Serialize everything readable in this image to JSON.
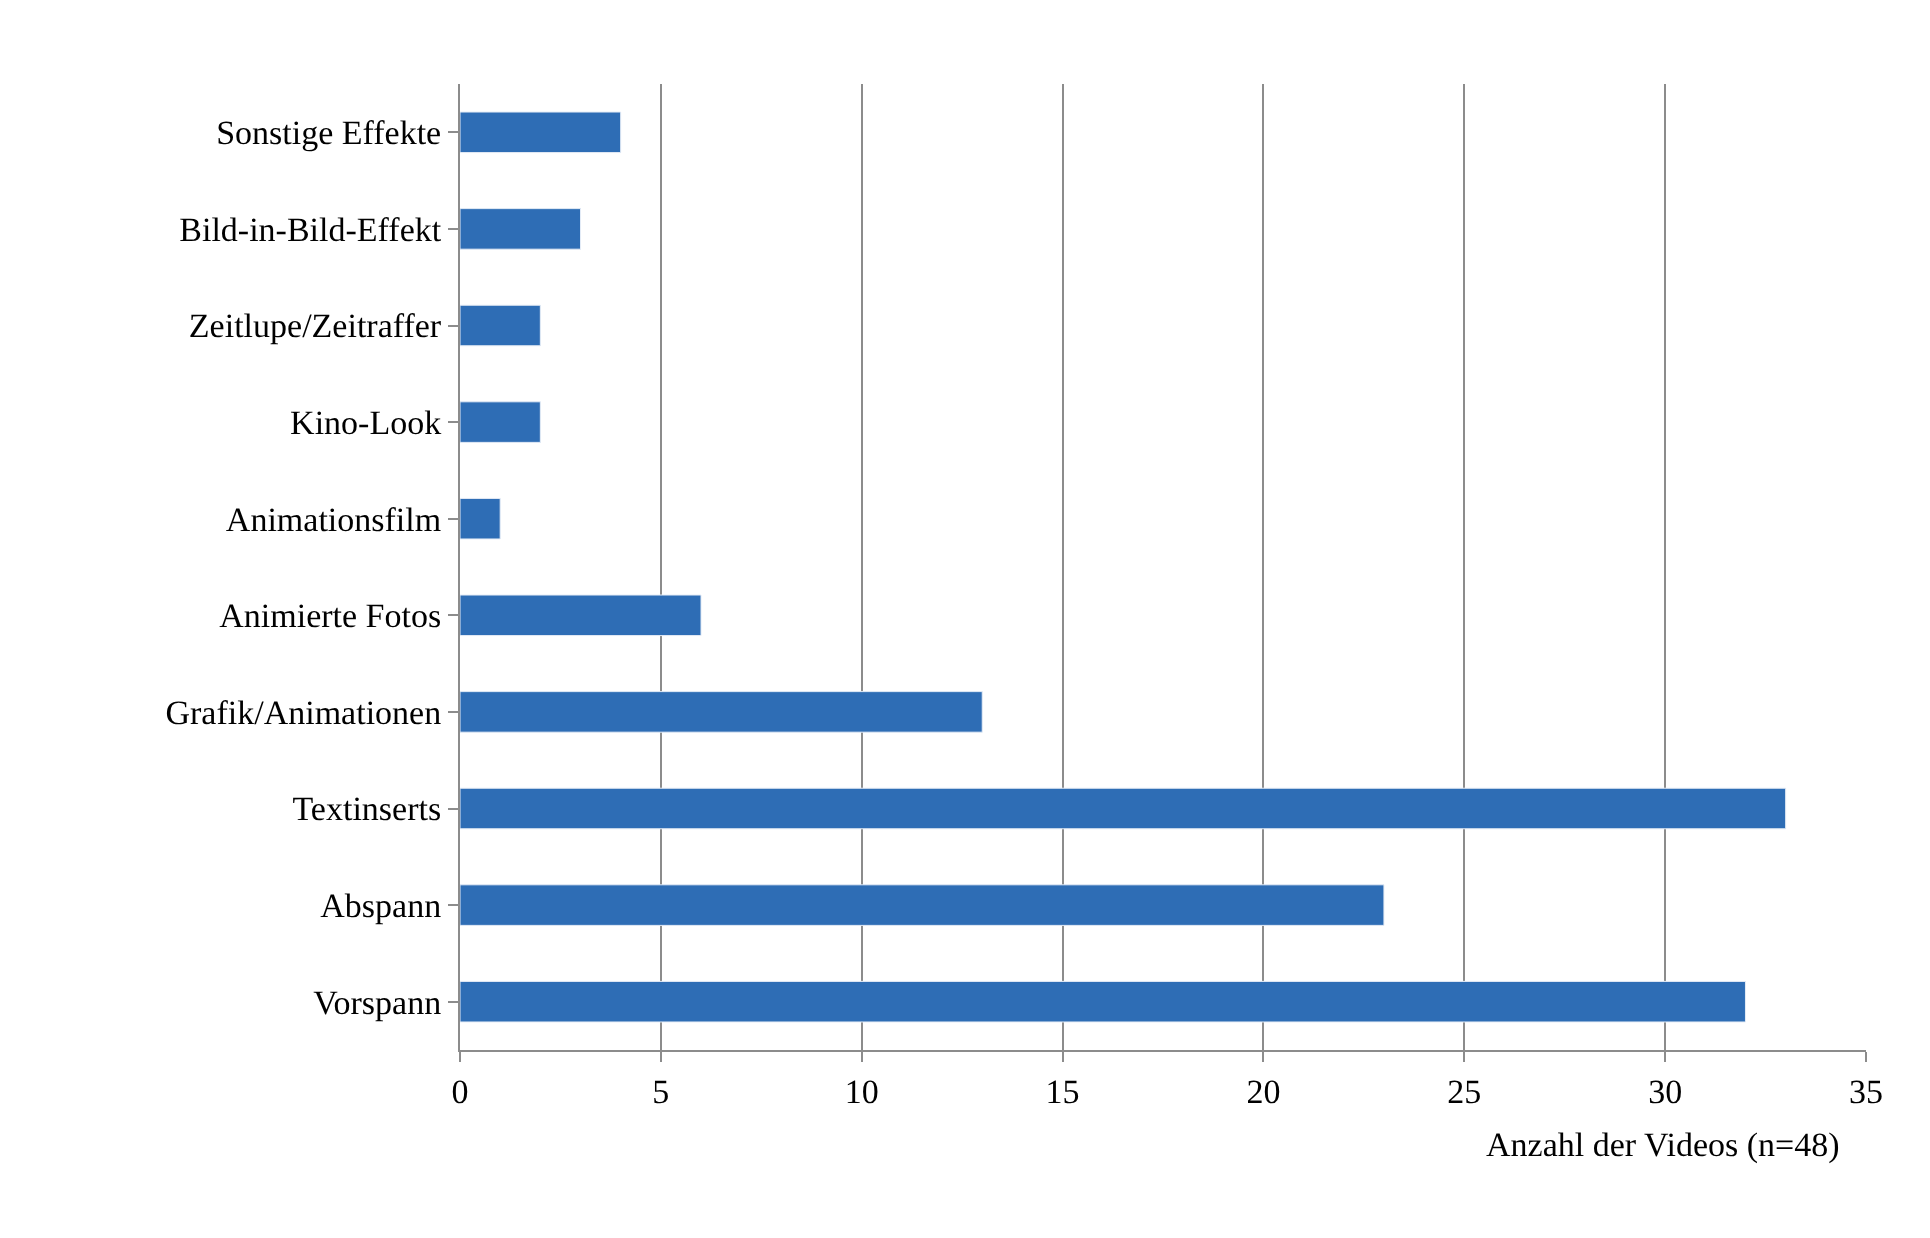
{
  "chart_data": {
    "type": "bar",
    "orientation": "horizontal",
    "xlabel": "Anzahl der Videos (n=48)",
    "categories": [
      "Sonstige Effekte",
      "Bild-in-Bild-Effekt",
      "Zeitlupe/Zeitraffer",
      "Kino-Look",
      "Animationsfilm",
      "Animierte Fotos",
      "Grafik/Animationen",
      "Textinserts",
      "Abspann",
      "Vorspann"
    ],
    "values": [
      4,
      3,
      2,
      2,
      1,
      6,
      13,
      33,
      23,
      32
    ],
    "color": "#2e6db5",
    "xlim": [
      0,
      35
    ],
    "xticks": [
      0,
      5,
      10,
      15,
      20,
      25,
      30,
      35
    ],
    "grid": "x"
  }
}
